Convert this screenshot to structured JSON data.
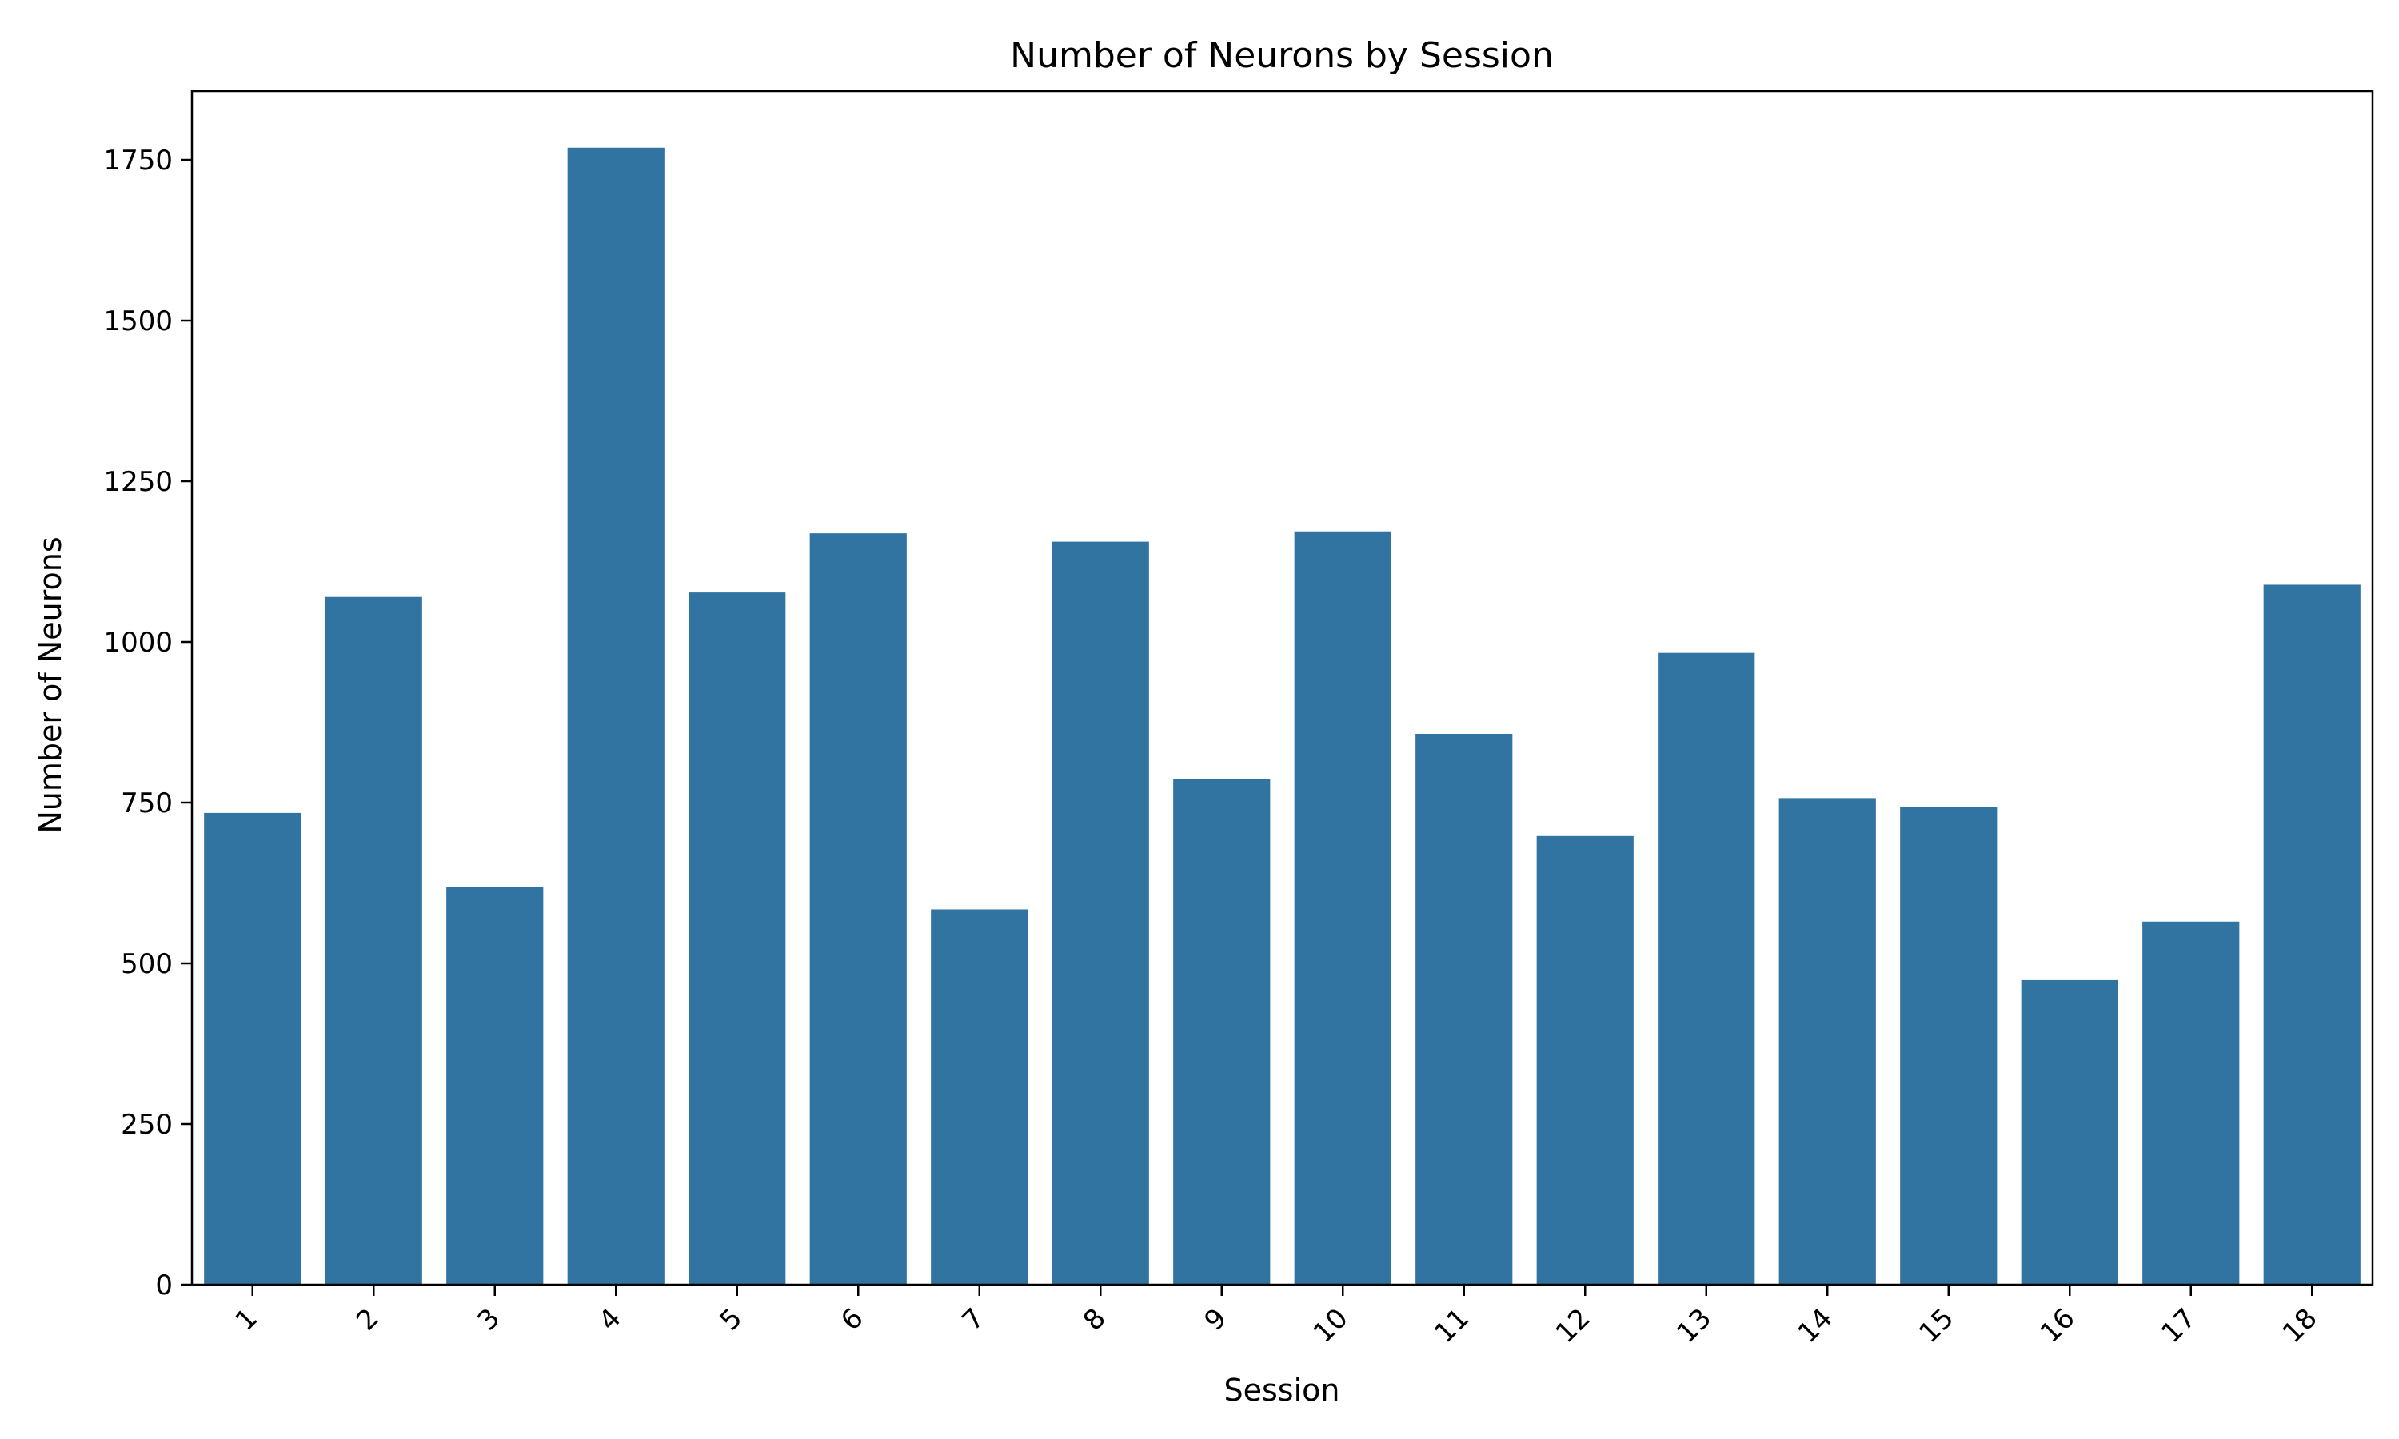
{
  "chart_data": {
    "type": "bar",
    "title": "Number of Neurons by Session",
    "xlabel": "Session",
    "ylabel": "Number of Neurons",
    "categories": [
      "1",
      "2",
      "3",
      "4",
      "5",
      "6",
      "7",
      "8",
      "9",
      "10",
      "11",
      "12",
      "13",
      "14",
      "15",
      "16",
      "17",
      "18"
    ],
    "values": [
      734,
      1070,
      619,
      1769,
      1077,
      1169,
      584,
      1156,
      787,
      1172,
      857,
      698,
      983,
      757,
      743,
      474,
      565,
      1089
    ],
    "ylim": [
      0,
      1857
    ],
    "yticks": [
      0,
      250,
      500,
      750,
      1000,
      1250,
      1500,
      1750
    ],
    "xtick_rotation": 45,
    "grid": false,
    "bar_color": "#3274a1"
  }
}
